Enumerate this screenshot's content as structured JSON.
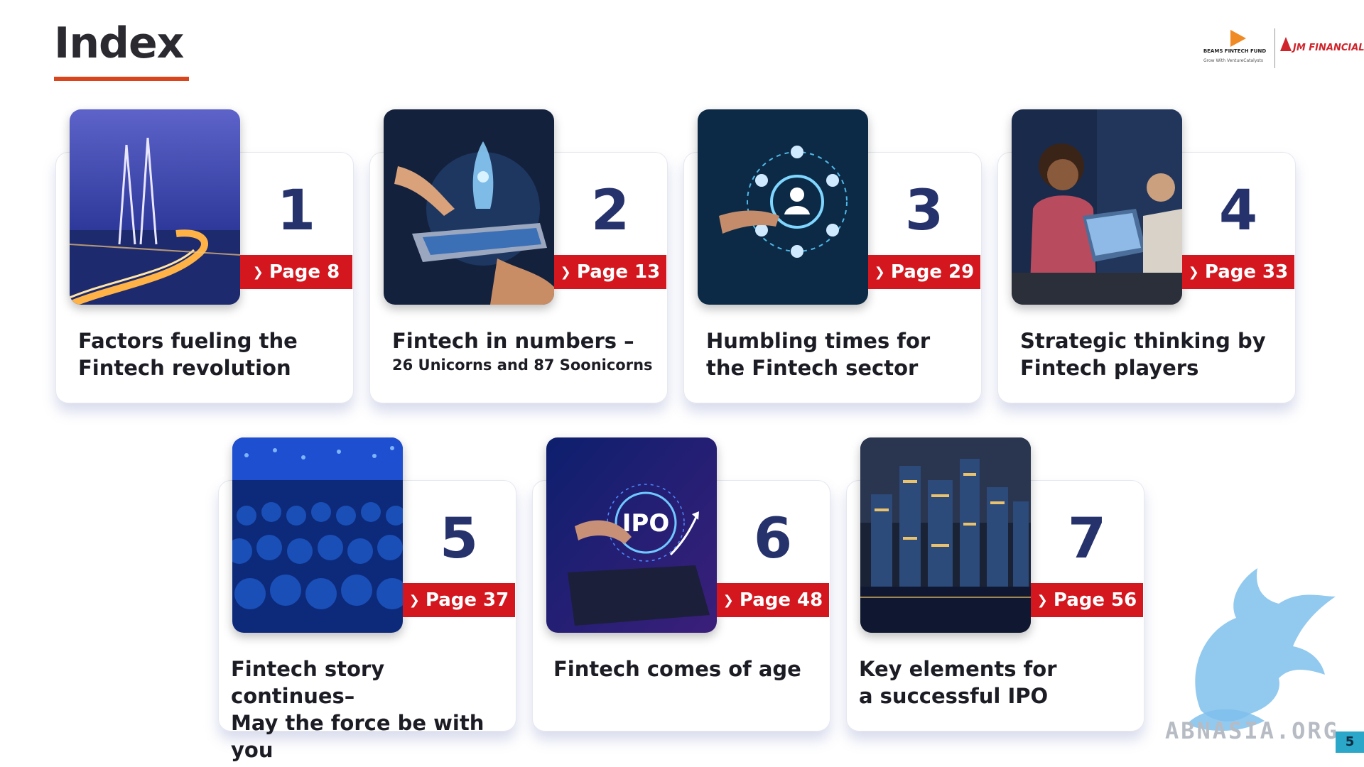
{
  "page": {
    "title": "Index"
  },
  "logo": {
    "beams_name": "BEAMS FINTECH FUND",
    "beams_tag": "Grow With VentureCatalysts",
    "jm_name": "JM FINANCIAL"
  },
  "cards": [
    {
      "number": "1",
      "page": "Page 8",
      "line1": "Factors fueling the",
      "line2": "Fintech revolution"
    },
    {
      "number": "2",
      "page": "Page 13",
      "line1": "Fintech in numbers –",
      "line2": "26 Unicorns and 87 Soonicorns"
    },
    {
      "number": "3",
      "page": "Page 29",
      "line1": "Humbling times for",
      "line2": "the Fintech sector"
    },
    {
      "number": "4",
      "page": "Page 33",
      "line1": "Strategic thinking by",
      "line2": "Fintech players"
    },
    {
      "number": "5",
      "page": "Page 37",
      "line1": "Fintech story continues–",
      "line2": "May the force be with you"
    },
    {
      "number": "6",
      "page": "Page 48",
      "line1": "Fintech comes of age",
      "line2": ""
    },
    {
      "number": "7",
      "page": "Page 56",
      "line1": "Key elements for",
      "line2": "a successful IPO"
    }
  ],
  "watermark": {
    "text": "ABNASIA.ORG"
  },
  "slide_number": "5",
  "icons": {
    "chevron": "chevron-right-icon"
  },
  "colors": {
    "accent_red": "#d4171e",
    "number_navy": "#26326b",
    "title_rule": "#d9461e"
  }
}
